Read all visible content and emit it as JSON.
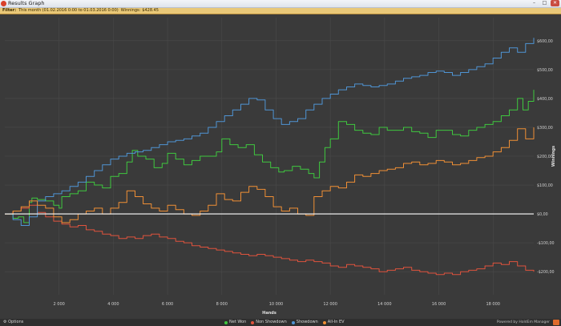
{
  "window": {
    "title": "Results Graph"
  },
  "filter": {
    "label": "Filter:",
    "range": "This month (01.02.2016 0:00 to 01.03.2016 0:00)",
    "winnings_label": "Winnings:",
    "winnings_value": "$428.45"
  },
  "footer": {
    "options_label": "Options",
    "brand": "Powered by HoldEm Manager"
  },
  "colors": {
    "net_won": "#3fc83f",
    "non_showdown": "#e0533d",
    "showdown": "#4f94d4",
    "all_in_ev": "#f08f35",
    "zero_line": "#ffffff"
  },
  "chart_data": {
    "type": "line",
    "xlabel": "Hands",
    "ylabel": "Winnings",
    "xlim": [
      0,
      19500
    ],
    "ylim": [
      -280,
      680
    ],
    "x_ticks": [
      2000,
      4000,
      6000,
      8000,
      10000,
      12000,
      14000,
      16000,
      18000
    ],
    "x_tick_labels": [
      "2 000",
      "4 000",
      "6 000",
      "8 000",
      "10 000",
      "12 000",
      "14 000",
      "16 000",
      "18 000"
    ],
    "y_ticks": [
      -200,
      -100,
      0,
      100,
      200,
      300,
      400,
      500,
      600
    ],
    "y_tick_labels": [
      "-$200,00",
      "-$100,00",
      "$0,00",
      "$100,00",
      "$200,00",
      "$300,00",
      "$400,00",
      "$500,00",
      "$600,00"
    ],
    "grid": true,
    "legend_position": "bottom",
    "series": [
      {
        "name": "Net Won",
        "key": "net_won",
        "x": [
          0,
          300,
          500,
          700,
          900,
          1000,
          1200,
          1500,
          1800,
          2000,
          2100,
          2400,
          2700,
          3000,
          3300,
          3600,
          3900,
          4200,
          4500,
          4700,
          4900,
          5200,
          5500,
          5800,
          6000,
          6300,
          6600,
          6900,
          7200,
          7500,
          7800,
          8000,
          8300,
          8600,
          8900,
          9200,
          9500,
          9800,
          10100,
          10300,
          10600,
          10900,
          11200,
          11400,
          11600,
          11800,
          12000,
          12300,
          12600,
          12900,
          13200,
          13500,
          13800,
          14100,
          14400,
          14700,
          15000,
          15300,
          15600,
          15900,
          16200,
          16500,
          16800,
          17100,
          17400,
          17700,
          18000,
          18300,
          18600,
          18900,
          19100,
          19300,
          19500
        ],
        "y": [
          0,
          -15,
          -10,
          -30,
          40,
          55,
          50,
          45,
          30,
          20,
          60,
          70,
          80,
          110,
          100,
          90,
          130,
          140,
          180,
          220,
          200,
          190,
          160,
          175,
          210,
          190,
          170,
          185,
          200,
          200,
          215,
          260,
          240,
          230,
          240,
          205,
          180,
          160,
          145,
          150,
          165,
          155,
          140,
          125,
          180,
          230,
          260,
          320,
          310,
          290,
          280,
          275,
          300,
          290,
          290,
          300,
          285,
          280,
          265,
          290,
          290,
          275,
          270,
          290,
          300,
          310,
          320,
          340,
          360,
          400,
          360,
          390,
          430
        ]
      },
      {
        "name": "Non Showdown",
        "key": "non_showdown",
        "x": [
          0,
          300,
          600,
          900,
          1200,
          1500,
          1800,
          2100,
          2400,
          2700,
          3000,
          3300,
          3600,
          3900,
          4200,
          4500,
          4800,
          5100,
          5400,
          5700,
          6000,
          6300,
          6600,
          6900,
          7200,
          7500,
          7800,
          8100,
          8400,
          8700,
          9000,
          9300,
          9600,
          9900,
          10200,
          10500,
          10800,
          11100,
          11400,
          11700,
          12000,
          12300,
          12600,
          12900,
          13200,
          13500,
          13800,
          14100,
          14400,
          14700,
          15000,
          15300,
          15600,
          15900,
          16200,
          16500,
          16800,
          17100,
          17400,
          17700,
          18000,
          18300,
          18600,
          18900,
          19200,
          19500
        ],
        "y": [
          0,
          10,
          20,
          30,
          5,
          -10,
          -25,
          -35,
          -45,
          -40,
          -55,
          -60,
          -70,
          -75,
          -85,
          -80,
          -85,
          -75,
          -70,
          -80,
          -85,
          -95,
          -100,
          -110,
          -115,
          -120,
          -125,
          -130,
          -135,
          -140,
          -145,
          -140,
          -145,
          -150,
          -155,
          -160,
          -165,
          -160,
          -165,
          -170,
          -180,
          -185,
          -175,
          -180,
          -185,
          -190,
          -200,
          -195,
          -190,
          -185,
          -195,
          -200,
          -205,
          -210,
          -205,
          -210,
          -200,
          -195,
          -190,
          -180,
          -170,
          -175,
          -165,
          -180,
          -195,
          -200
        ]
      },
      {
        "name": "Showdown",
        "key": "showdown",
        "x": [
          0,
          300,
          600,
          900,
          1200,
          1500,
          1800,
          2100,
          2400,
          2700,
          3000,
          3300,
          3600,
          3900,
          4200,
          4500,
          4800,
          5100,
          5400,
          5700,
          6000,
          6300,
          6600,
          6900,
          7200,
          7500,
          7800,
          8100,
          8400,
          8700,
          9000,
          9300,
          9600,
          9900,
          10200,
          10500,
          10800,
          11100,
          11400,
          11700,
          12000,
          12300,
          12600,
          12900,
          13200,
          13500,
          13800,
          14100,
          14400,
          14700,
          15000,
          15300,
          15600,
          15900,
          16200,
          16500,
          16800,
          17100,
          17400,
          17700,
          18000,
          18300,
          18600,
          18900,
          19200,
          19500
        ],
        "y": [
          0,
          -20,
          -40,
          -10,
          45,
          60,
          70,
          80,
          95,
          110,
          130,
          150,
          170,
          190,
          200,
          210,
          215,
          220,
          230,
          240,
          250,
          255,
          260,
          270,
          280,
          300,
          320,
          340,
          360,
          380,
          400,
          395,
          360,
          330,
          310,
          320,
          330,
          360,
          380,
          400,
          415,
          430,
          440,
          450,
          445,
          440,
          445,
          450,
          460,
          470,
          475,
          480,
          490,
          495,
          490,
          480,
          490,
          500,
          510,
          520,
          540,
          560,
          575,
          560,
          590,
          610
        ]
      },
      {
        "name": "All-In EV",
        "key": "all_in_ev",
        "x": [
          0,
          300,
          600,
          900,
          1200,
          1500,
          1800,
          2100,
          2400,
          2700,
          3000,
          3300,
          3600,
          3900,
          4200,
          4500,
          4800,
          5100,
          5400,
          5700,
          6000,
          6300,
          6600,
          6900,
          7200,
          7500,
          7800,
          8100,
          8400,
          8700,
          9000,
          9300,
          9600,
          9900,
          10200,
          10500,
          10800,
          11100,
          11400,
          11700,
          12000,
          12300,
          12600,
          12900,
          13200,
          13500,
          13800,
          14100,
          14400,
          14700,
          15000,
          15300,
          15600,
          15900,
          16200,
          16500,
          16800,
          17100,
          17400,
          17700,
          18000,
          18300,
          18600,
          18900,
          19200,
          19500
        ],
        "y": [
          0,
          10,
          25,
          45,
          30,
          20,
          -10,
          -30,
          -20,
          0,
          10,
          20,
          0,
          20,
          40,
          80,
          60,
          35,
          20,
          10,
          30,
          15,
          0,
          -5,
          10,
          30,
          70,
          50,
          45,
          75,
          95,
          85,
          60,
          25,
          10,
          20,
          0,
          -5,
          60,
          80,
          95,
          90,
          110,
          135,
          130,
          140,
          150,
          155,
          160,
          175,
          180,
          170,
          175,
          185,
          180,
          170,
          175,
          185,
          195,
          200,
          215,
          230,
          255,
          295,
          260,
          300
        ]
      }
    ]
  }
}
